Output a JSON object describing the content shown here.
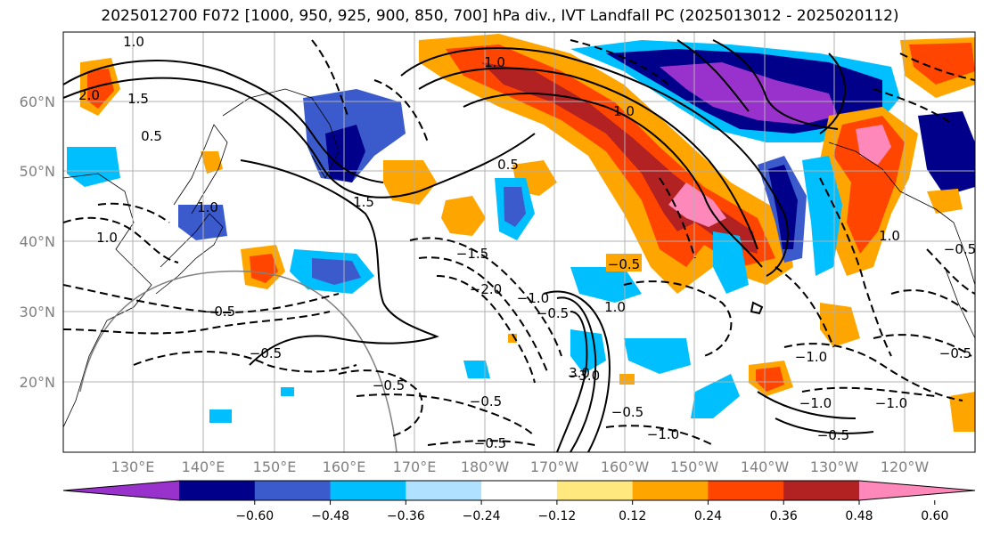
{
  "title": "2025012700 F072 [1000, 950, 925, 900, 850, 700] hPa div., IVT Landfall PC (2025013012 - 2025020112)",
  "chart_data": {
    "type": "heatmap",
    "title": "2025012700 F072 [1000, 950, 925, 900, 850, 700] hPa div., IVT Landfall PC (2025013012 - 2025020112)",
    "map": {
      "lon_ticks": [
        "130°E",
        "140°E",
        "150°E",
        "160°E",
        "170°E",
        "180°W",
        "170°W",
        "160°W",
        "150°W",
        "140°W",
        "130°W",
        "120°W"
      ],
      "lat_ticks": [
        "60°N",
        "50°N",
        "40°N",
        "30°N",
        "20°N"
      ],
      "lon_values": [
        130,
        140,
        150,
        160,
        170,
        180,
        190,
        200,
        210,
        220,
        230,
        240
      ],
      "lat_values": [
        60,
        50,
        40,
        30,
        20
      ],
      "grid": true
    },
    "colorbar": {
      "ticks": [
        "−0.60",
        "−0.48",
        "−0.36",
        "−0.24",
        "−0.12",
        "0.12",
        "0.24",
        "0.36",
        "0.48",
        "0.60"
      ],
      "levels": [
        -0.6,
        -0.48,
        -0.36,
        -0.24,
        -0.12,
        0.12,
        0.24,
        0.36,
        0.48,
        0.6
      ],
      "colors": [
        "#9932CC",
        "#00008B",
        "#3B5BCC",
        "#00BFFF",
        "#B0E2FF",
        "#FFFFFF",
        "#FFE97F",
        "#FFA500",
        "#FF4500",
        "#B22222",
        "#FF88BB"
      ],
      "extend": "both"
    },
    "contour_labels": [
      "1.0",
      "2.0",
      "1.5",
      "0.5",
      "1.5",
      "−0.5",
      "−0.5",
      "−0.5",
      "−0.5",
      "−0.5",
      "−1.0",
      "−1.5",
      "−2.0",
      "−1.0",
      "−0.5",
      "−3.0",
      "−0.5",
      "−1.0",
      "−0.5",
      "1.0",
      "1.0",
      "0.5",
      "1.0",
      "−0.5",
      "−1.0",
      "−1.0",
      "−0.5",
      "−0.5",
      "3.0",
      "1.0",
      "1.0",
      "1.0"
    ]
  }
}
